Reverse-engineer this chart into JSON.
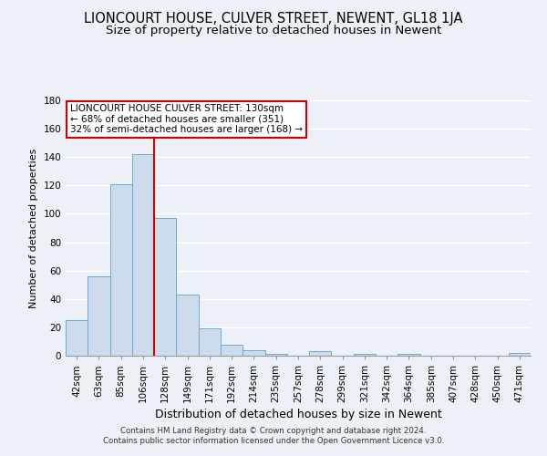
{
  "title": "LIONCOURT HOUSE, CULVER STREET, NEWENT, GL18 1JA",
  "subtitle": "Size of property relative to detached houses in Newent",
  "xlabel": "Distribution of detached houses by size in Newent",
  "ylabel": "Number of detached properties",
  "bar_labels": [
    "42sqm",
    "63sqm",
    "85sqm",
    "106sqm",
    "128sqm",
    "149sqm",
    "171sqm",
    "192sqm",
    "214sqm",
    "235sqm",
    "257sqm",
    "278sqm",
    "299sqm",
    "321sqm",
    "342sqm",
    "364sqm",
    "385sqm",
    "407sqm",
    "428sqm",
    "450sqm",
    "471sqm"
  ],
  "bar_values": [
    25,
    56,
    121,
    142,
    97,
    43,
    19,
    8,
    4,
    1,
    0,
    3,
    0,
    1,
    0,
    1,
    0,
    0,
    0,
    0,
    2
  ],
  "bar_color": "#ccdcec",
  "bar_edge_color": "#6aaad4",
  "vline_index": 4,
  "vline_color": "#cc0000",
  "ylim": [
    0,
    180
  ],
  "yticks": [
    0,
    20,
    40,
    60,
    80,
    100,
    120,
    140,
    160,
    180
  ],
  "annotation_line1": "LIONCOURT HOUSE CULVER STREET: 130sqm",
  "annotation_line2": "← 68% of detached houses are smaller (351)",
  "annotation_line3": "32% of semi-detached houses are larger (168) →",
  "annotation_box_color": "#ffffff",
  "annotation_box_edge": "#cc0000",
  "footer_line1": "Contains HM Land Registry data © Crown copyright and database right 2024.",
  "footer_line2": "Contains public sector information licensed under the Open Government Licence v3.0.",
  "bg_color": "#edf1f7",
  "grid_color": "#ffffff",
  "title_fontsize": 10.5,
  "subtitle_fontsize": 9.5,
  "tick_fontsize": 7.5,
  "ylabel_fontsize": 8,
  "xlabel_fontsize": 9
}
